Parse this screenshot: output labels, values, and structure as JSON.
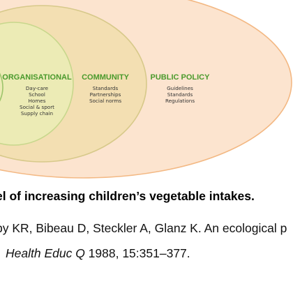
{
  "diagram": {
    "colors": {
      "public_policy_fill": "#fce4cf",
      "public_policy_stroke": "#f3b883",
      "community_fill": "#f3dfb2",
      "community_stroke": "#d7c98a",
      "organisational_fill": "#ecebb5",
      "organisational_stroke": "#c7d78c",
      "title_green": "#4a9a2c"
    },
    "layers": {
      "organisational": {
        "title": "ORGANISATIONAL",
        "items": [
          "Day-care",
          "School",
          "Homes",
          "Social & sport",
          "Supply chain"
        ]
      },
      "community": {
        "title": "COMMUNITY",
        "items": [
          "Standards",
          "Partnerships",
          "Social norms"
        ]
      },
      "public_policy": {
        "title": "PUBLIC POLICY",
        "items": [
          "Guidelines",
          "Standards",
          "Regulations"
        ]
      }
    }
  },
  "caption": "el of increasing children’s vegetable intakes.",
  "reference": {
    "line1": "by KR, Bibeau D, Steckler A, Glanz K. An ecological p",
    "journal": "Health Educ Q",
    "citation": " 1988, 15:351–377."
  }
}
